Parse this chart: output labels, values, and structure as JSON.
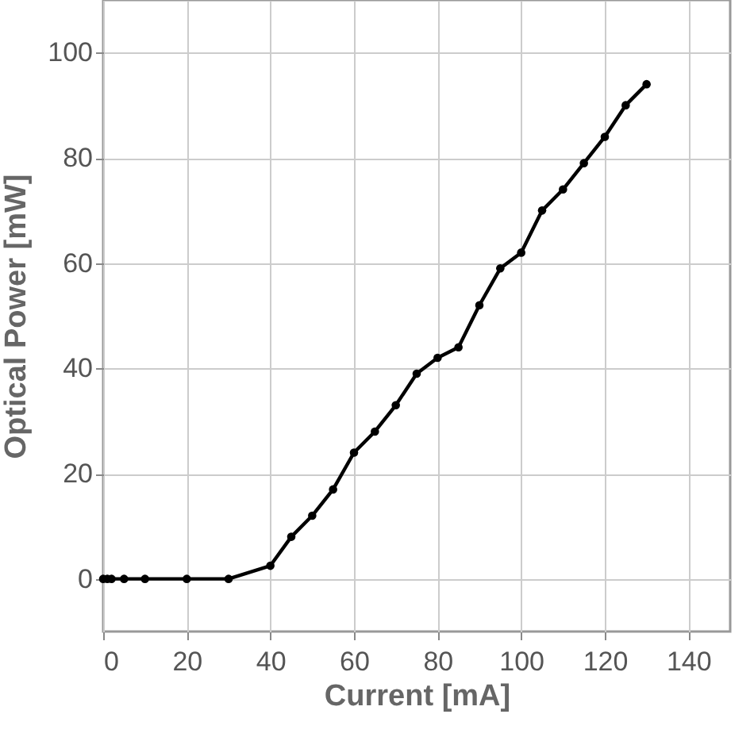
{
  "chart_data": {
    "type": "line",
    "xlabel": "Current [mA]",
    "ylabel": "Optical Power [mW]",
    "x": [
      0,
      1,
      2,
      5,
      10,
      20,
      30,
      40,
      45,
      50,
      55,
      60,
      65,
      70,
      75,
      80,
      85,
      90,
      95,
      100,
      105,
      110,
      115,
      120,
      125,
      130
    ],
    "series": [
      {
        "color": "#000000",
        "values": [
          0,
          0,
          0,
          0,
          0,
          0,
          0,
          2.5,
          8,
          12,
          17,
          24,
          28,
          33,
          39,
          42,
          44,
          52,
          59,
          62,
          70,
          74,
          79,
          84,
          90,
          94
        ]
      }
    ],
    "xlim": [
      0,
      150
    ],
    "ylim": [
      -10,
      110
    ],
    "xticks": [
      0,
      20,
      40,
      60,
      80,
      100,
      120,
      140
    ],
    "yticks": [
      0,
      20,
      40,
      60,
      80,
      100
    ],
    "grid": true,
    "marker": "circle",
    "line_style": "solid"
  }
}
